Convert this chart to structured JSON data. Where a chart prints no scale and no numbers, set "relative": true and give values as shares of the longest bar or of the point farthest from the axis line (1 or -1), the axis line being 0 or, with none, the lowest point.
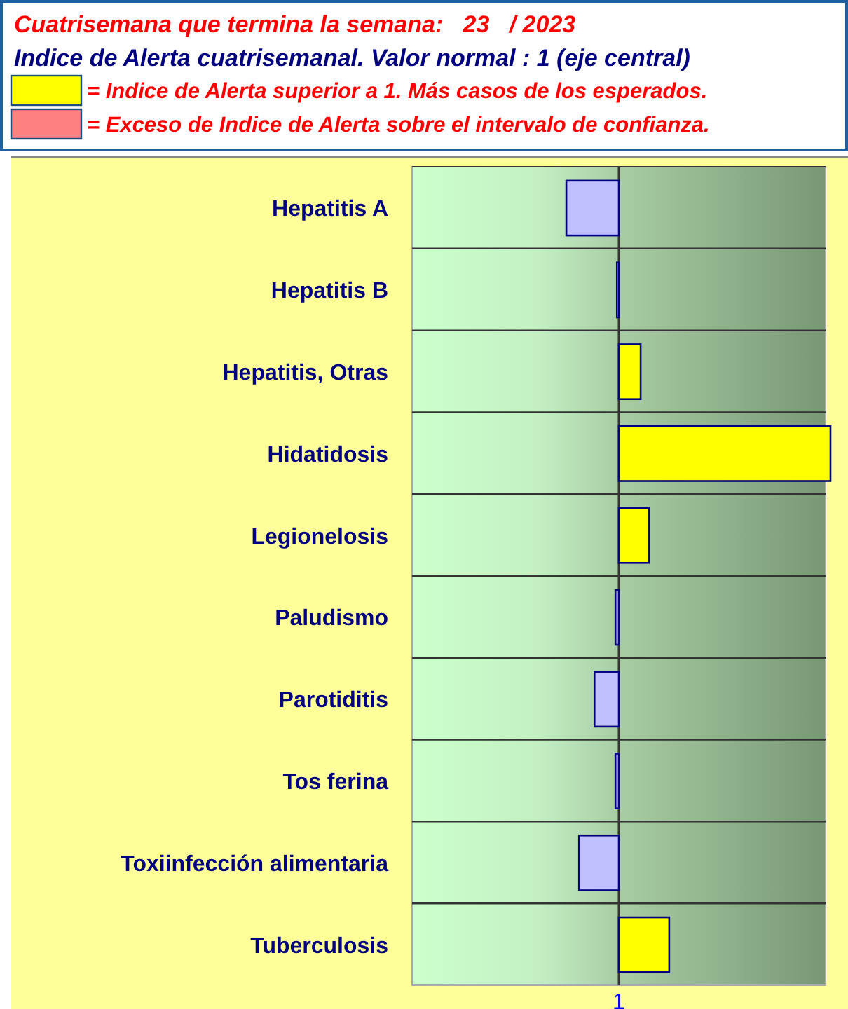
{
  "chart_data": {
    "type": "bar",
    "orientation": "horizontal",
    "relative": true,
    "title": "Cuatrisemana que termina la semana:   23   / 2023",
    "subtitle": "Indice de Alerta cuatrisemanal. Valor normal : 1 (eje central)",
    "categories": [
      "Hepatitis A",
      "Hepatitis B",
      "Hepatitis, Otras",
      "Hidatidosis",
      "Legionelosis",
      "Paludismo",
      "Parotiditis",
      "Tos ferina",
      "Toxiinfección alimentaria",
      "Tuberculosis"
    ],
    "series": [
      {
        "name": "= Indice de Alerta superior a 1. Más casos de los esperados.",
        "color": "#ffff00",
        "values": [
          null,
          null,
          0.103,
          1,
          0.143,
          null,
          null,
          null,
          null,
          0.238
        ]
      },
      {
        "name": "= Exceso de Indice de Alerta sobre el intervalo de confianza.",
        "color": "#ff8080",
        "values": [
          null,
          null,
          null,
          null,
          null,
          null,
          null,
          null,
          null,
          null
        ]
      },
      {
        "color": "#c0c0ff",
        "values": [
          -0.248,
          -0.009,
          null,
          null,
          null,
          -0.016,
          -0.115,
          -0.016,
          -0.188,
          null
        ]
      }
    ],
    "annotations": [
      "1"
    ],
    "legend": "top left"
  }
}
